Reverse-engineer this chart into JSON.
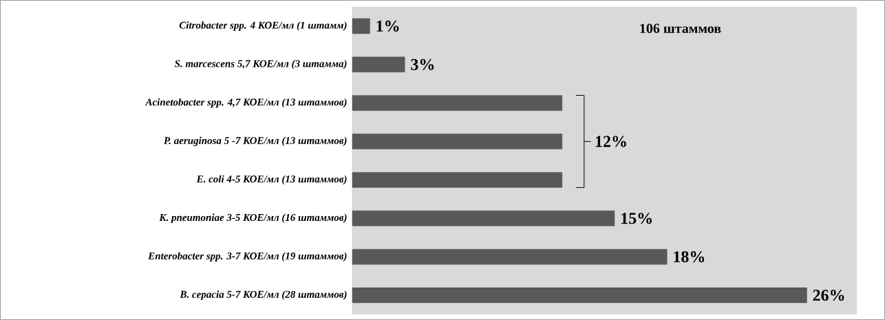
{
  "chart_data": {
    "type": "bar",
    "orientation": "horizontal",
    "tick_labels": "y",
    "categories": [
      "Citrobacter  spp. 4  КОЕ/мл (1 штамм)",
      "S. marcescens 5,7 КОЕ/мл (3 штамма)",
      "Acinetobacter spp.  4,7  КОЕ/мл (13 штаммов)",
      "P. aeruginosa 5 -7 КОЕ/мл (13 штаммов)",
      "E. coli 4-5  КОЕ/мл (13 штаммов)",
      "K. pneumoniae  3-5   КОЕ/мл (16 штаммов)",
      "Enterobacter  spp. 3-7 КОЕ/мл (19 штаммов)",
      "B. cepacia  5-7 КОЕ/мл (28 штаммов)"
    ],
    "values": [
      1,
      3,
      12,
      12,
      12,
      15,
      18,
      26
    ],
    "value_labels": [
      "1%",
      "3%",
      null,
      null,
      null,
      "15%",
      "18%",
      "26%"
    ],
    "color": "#595959",
    "annotations": [
      "106 штаммов",
      {
        "text": "12%",
        "x": 12,
        "y": "P. aeruginosa 5 -7 КОЕ/мл (13 штаммов)"
      }
    ]
  }
}
